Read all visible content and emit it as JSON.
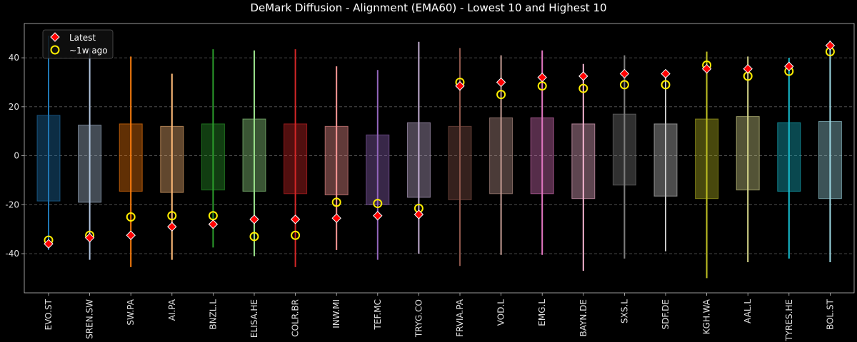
{
  "chart_data": {
    "type": "box",
    "title": "DeMark Diffusion - Alignment (EMA60) - Lowest 10 and Highest 10",
    "xlabel": "",
    "ylabel": "",
    "ylim": [
      -56,
      54
    ],
    "yticks": [
      -40,
      -20,
      0,
      20,
      40
    ],
    "grid": "horizontal dashed",
    "legend_position": "top-left",
    "categories": [
      "EVO.ST",
      "SREN.SW",
      "SW.PA",
      "AI.PA",
      "BNZL.L",
      "ELISA.HE",
      "COLR.BR",
      "INW.MI",
      "TEF.MC",
      "TRYG.CO",
      "FRVIA.PA",
      "VOD.L",
      "EMG.L",
      "BAYN.DE",
      "SXS.L",
      "SDF.DE",
      "KGH.WA",
      "AAL.L",
      "TYRES.HE",
      "BOL.ST"
    ],
    "colors": [
      "#1f77b4",
      "#b0c4de",
      "#ff7f0e",
      "#ffbb78",
      "#2ca02c",
      "#98df8a",
      "#d62728",
      "#ff9896",
      "#9467bd",
      "#c5b0d5",
      "#8c564b",
      "#c49c94",
      "#e377c2",
      "#f7b6d2",
      "#7f7f7f",
      "#c7c7c7",
      "#bcbd22",
      "#dbdb8d",
      "#17becf",
      "#9edae5"
    ],
    "ranges": [
      [
        -38.5,
        49
      ],
      [
        -42.5,
        44
      ],
      [
        -45.5,
        40.5
      ],
      [
        -42.5,
        33.5
      ],
      [
        -37.5,
        43.5
      ],
      [
        -41,
        43
      ],
      [
        -45.5,
        43.5
      ],
      [
        -38.5,
        36.5
      ],
      [
        -42.5,
        35
      ],
      [
        -40,
        46.5
      ],
      [
        -45,
        44
      ],
      [
        -40.5,
        41
      ],
      [
        -40.5,
        43
      ],
      [
        -47,
        37.5
      ],
      [
        -42,
        41
      ],
      [
        -39,
        34
      ],
      [
        -50,
        42.5
      ],
      [
        -43.5,
        40.5
      ],
      [
        -42,
        40
      ],
      [
        -43.5,
        47
      ]
    ],
    "boxes": [
      [
        -18.5,
        16.5
      ],
      [
        -19,
        12.5
      ],
      [
        -14.5,
        13
      ],
      [
        -15,
        12
      ],
      [
        -14,
        13
      ],
      [
        -14.5,
        15
      ],
      [
        -15.5,
        13
      ],
      [
        -16,
        12
      ],
      [
        -20,
        8.5
      ],
      [
        -17,
        13.5
      ],
      [
        -18,
        12
      ],
      [
        -15.5,
        15.5
      ],
      [
        -15.5,
        15.5
      ],
      [
        -17.5,
        13
      ],
      [
        -12,
        17
      ],
      [
        -16.5,
        13
      ],
      [
        -17.5,
        15
      ],
      [
        -14,
        16
      ],
      [
        -14.5,
        13.5
      ],
      [
        -17.5,
        14
      ]
    ],
    "series": [
      {
        "name": "Latest",
        "values": [
          -36,
          -33.5,
          -32.5,
          -29,
          -28,
          -26,
          -26,
          -25.5,
          -24.5,
          -24,
          28.5,
          30,
          32,
          32.5,
          33.5,
          33.5,
          35.5,
          35.5,
          36.5,
          45
        ]
      },
      {
        "name": "~1w ago",
        "values": [
          -34.5,
          -32.5,
          -25,
          -24.5,
          -24.5,
          -33,
          -32.5,
          -19,
          -19.5,
          -21.5,
          30,
          25,
          28.5,
          27.5,
          29,
          29,
          37,
          32.5,
          34.5,
          42.5
        ]
      }
    ]
  }
}
